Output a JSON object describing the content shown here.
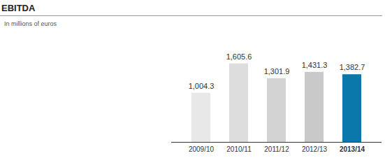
{
  "chart_data": {
    "type": "bar",
    "title": "EBITDA",
    "subtitle": "In millions of euros",
    "categories": [
      "2009/10",
      "2010/11",
      "2011/12",
      "2012/13",
      "2013/14"
    ],
    "values": [
      1004.3,
      1605.6,
      1301.9,
      1431.3,
      1382.7
    ],
    "value_labels": [
      "1,004.3",
      "1,605.6",
      "1,301.9",
      "1,431.3",
      "1,382.7"
    ],
    "colors": [
      "#e8e8e8",
      "#dddddd",
      "#d3d3d3",
      "#c9c9c9",
      "#0a78aa"
    ],
    "ylim": [
      0,
      1800
    ],
    "data_labels": true,
    "tick_labels": "x",
    "grid": false
  }
}
